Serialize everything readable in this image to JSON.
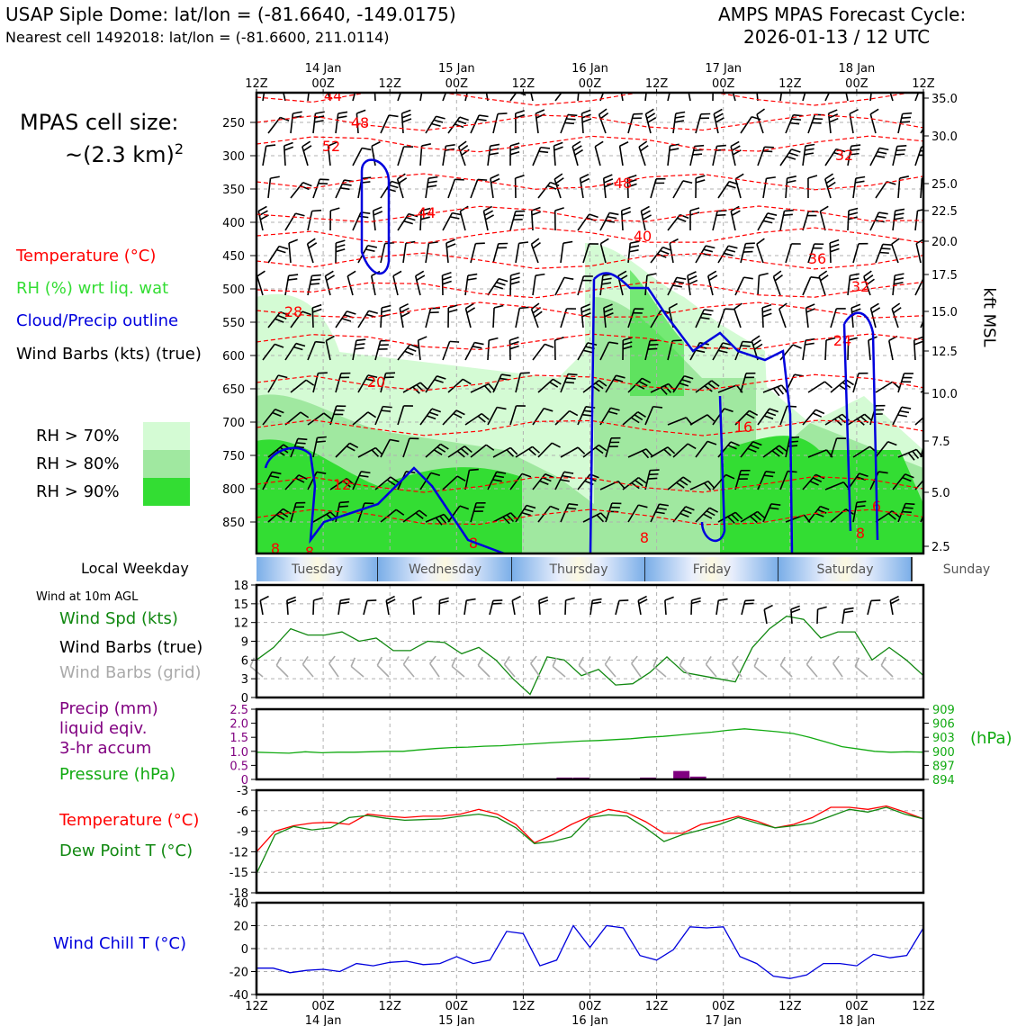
{
  "header": {
    "title": "USAP Siple Dome: lat/lon = (-81.6640, -149.0175)",
    "subtitle": "Nearest cell 1492018: lat/lon = (-81.6600, 211.0114)",
    "cycle_title": "AMPS MPAS Forecast Cycle:",
    "cycle_date": "2026-01-13 / 12 UTC"
  },
  "left_legend": {
    "cell_size_label": "MPAS cell size:",
    "cell_size_value": "~(2.3 km)",
    "cell_size_exp": "2",
    "temperature": "Temperature (°C)",
    "rh": "RH (%) wrt liq. wat",
    "cloud": "Cloud/Precip outline",
    "wind_barbs": "Wind Barbs (kts) (true)",
    "rh70": "RH > 70%",
    "rh80": "RH > 80%",
    "rh90": "RH > 90%"
  },
  "colors": {
    "rh70": "#d4fbd4",
    "rh80": "#a0e8a0",
    "rh90": "#33dd33",
    "temp": "#ff0000",
    "cloud": "#0000dd",
    "wind_speed": "#118811",
    "precip": "#800080",
    "pressure": "#11aa11",
    "dewpoint": "#118811",
    "windchill": "#0000dd",
    "grid_barbs": "#aaaaaa"
  },
  "time_axis": {
    "ticks": [
      "12Z",
      "00Z",
      "12Z",
      "00Z",
      "12Z",
      "00Z",
      "12Z",
      "00Z",
      "12Z",
      "00Z",
      "12Z"
    ],
    "days": [
      "14 Jan",
      "15 Jan",
      "16 Jan",
      "17 Jan",
      "18 Jan"
    ]
  },
  "weekday": {
    "label": "Local Weekday",
    "days": [
      "Tuesday",
      "Wednesday",
      "Thursday",
      "Friday",
      "Saturday",
      "Sunday"
    ]
  },
  "wind_panel": {
    "caption": "Wind at 10m AGL",
    "speed_label": "Wind Spd (kts)",
    "barbs_true_label": "Wind Barbs (true)",
    "barbs_grid_label": "Wind Barbs (grid)"
  },
  "precip_panel": {
    "label1": "Precip (mm)",
    "label2": "liquid eqiv.",
    "label3": "3-hr accum",
    "pressure_label": "Pressure (hPa)",
    "hpa_unit": "(hPa)"
  },
  "temp_panel": {
    "temp_label": "Temperature (°C)",
    "dew_label": "Dew Point T (°C)"
  },
  "chill_panel": {
    "label": "Wind Chill T (°C)"
  },
  "chart_data": [
    {
      "type": "heatmap",
      "name": "cross-section",
      "y_left_ticks": [
        "250",
        "300",
        "350",
        "400",
        "450",
        "500",
        "550",
        "600",
        "650",
        "700",
        "750",
        "800",
        "850"
      ],
      "y_right_ticks": [
        "35.0",
        "30.0",
        "25.0",
        "22.5",
        "20.0",
        "17.5",
        "15.0",
        "12.5",
        "10.0",
        "7.5",
        "5.0",
        "2.5"
      ],
      "ylabel_right": "kft MSL",
      "temp_contour_labels": [
        "44",
        "48",
        "52",
        "48",
        "44",
        "40",
        "36",
        "32",
        "28",
        "24",
        "20",
        "16",
        "12",
        "8",
        "8",
        "8",
        "8",
        "6",
        "8",
        "32"
      ]
    },
    {
      "type": "line",
      "name": "wind-speed",
      "ylim": [
        0,
        18
      ],
      "yticks": [
        "0",
        "3",
        "6",
        "9",
        "12",
        "15",
        "18"
      ],
      "series": [
        {
          "values": [
            6,
            8,
            11,
            10,
            10,
            10.5,
            9,
            9.5,
            7.5,
            7.5,
            9,
            8.8,
            7,
            8,
            6,
            3,
            0.5,
            6.5,
            6,
            3.5,
            4.5,
            2,
            2.2,
            4,
            6.5,
            4,
            3.5,
            3,
            2.5,
            8,
            11,
            13,
            12.5,
            9.5,
            10.5,
            10.5,
            6,
            8,
            6,
            3.5
          ]
        }
      ]
    },
    {
      "type": "bar",
      "name": "precip-pressure",
      "precip_ylim": [
        0,
        2.5
      ],
      "precip_yticks": [
        "0",
        "0.5",
        "1.0",
        "1.5",
        "2.0",
        "2.5"
      ],
      "pressure_ylim": [
        894,
        909
      ],
      "pressure_yticks": [
        "894",
        "897",
        "900",
        "903",
        "906",
        "909"
      ],
      "precip": [
        {
          "x": 18,
          "v": 0.05
        },
        {
          "x": 19,
          "v": 0.05
        },
        {
          "x": 23,
          "v": 0.03
        },
        {
          "x": 25,
          "v": 0.3
        },
        {
          "x": 26,
          "v": 0.1
        }
      ],
      "pressure": [
        899.8,
        899.7,
        899.6,
        899.9,
        899.7,
        899.8,
        899.8,
        899.9,
        900.0,
        900.0,
        900.3,
        900.6,
        900.8,
        900.9,
        901.1,
        901.2,
        901.4,
        901.6,
        901.8,
        902.0,
        902.2,
        902.3,
        902.5,
        902.7,
        903.0,
        903.2,
        903.5,
        903.8,
        904.1,
        904.5,
        904.8,
        904.5,
        904.2,
        903.8,
        903.0,
        902.0,
        901.0,
        900.5,
        900.0,
        899.8,
        899.9,
        899.8
      ]
    },
    {
      "type": "line",
      "name": "temperature",
      "ylim": [
        -18,
        -3
      ],
      "yticks": [
        "-3",
        "-6",
        "-9",
        "-12",
        "-15",
        "-18"
      ],
      "series": [
        {
          "values": [
            -12,
            -9,
            -8.2,
            -7.8,
            -7.7,
            -8,
            -6.5,
            -6.8,
            -7,
            -6.8,
            -6.8,
            -6.5,
            -5.8,
            -6.5,
            -8,
            -10.7,
            -9.5,
            -8,
            -6.8,
            -5.8,
            -6.3,
            -7.6,
            -9.3,
            -9.3,
            -8,
            -7.5,
            -6.8,
            -7.5,
            -8.5,
            -8,
            -7,
            -5.5,
            -5.5,
            -5.8,
            -5.3,
            -6.2,
            -7.2
          ]
        },
        {
          "values": [
            -15.2,
            -9.5,
            -8.3,
            -8.8,
            -8.5,
            -7,
            -6.7,
            -7.1,
            -7.4,
            -7.3,
            -7.2,
            -6.8,
            -6.5,
            -7,
            -8.5,
            -10.8,
            -10.5,
            -9.8,
            -7,
            -6.6,
            -6.8,
            -8.5,
            -10.5,
            -9.5,
            -8.8,
            -8,
            -7,
            -7.8,
            -8.5,
            -8.2,
            -7.8,
            -6.8,
            -5.8,
            -6.2,
            -5.5,
            -6.5,
            -7.2
          ]
        }
      ]
    },
    {
      "type": "line",
      "name": "wind-chill",
      "ylim": [
        -40,
        40
      ],
      "yticks": [
        "40",
        "20",
        "0",
        "-20",
        "-40"
      ],
      "series": [
        {
          "values": [
            -17,
            -17,
            -21,
            -19,
            -18,
            -20,
            -13,
            -15,
            -12,
            -11,
            -14,
            -13,
            -7,
            -13,
            -10,
            15,
            13,
            -15,
            -10,
            20,
            1,
            20,
            18,
            -6,
            -10,
            -1,
            19,
            18,
            19,
            -7,
            -13,
            -24,
            -26,
            -23,
            -13,
            -13,
            -15,
            -5,
            -8,
            -6,
            18
          ]
        }
      ]
    }
  ]
}
